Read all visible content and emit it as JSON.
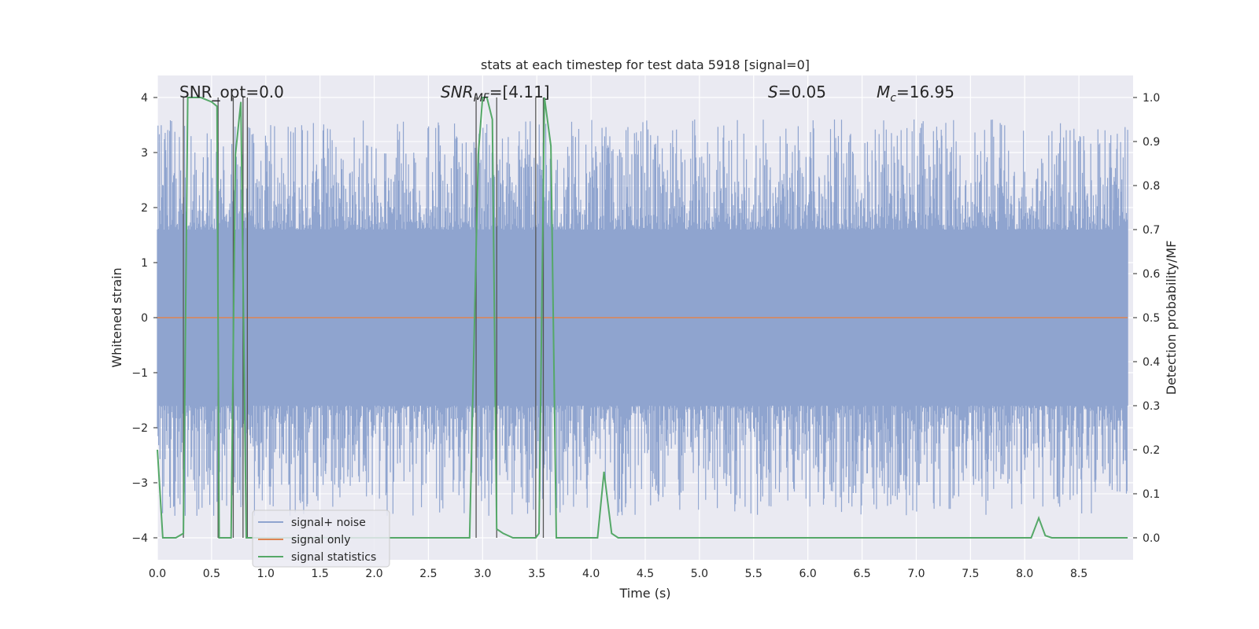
{
  "chart_data": {
    "type": "line",
    "title": "stats at each timestep for test data 5918 [signal=0]",
    "xlabel": "Time (s)",
    "ylabel": "Whitened strain",
    "ylabel_right": "Detection probability/MF",
    "xlim": [
      0.0,
      9.0
    ],
    "ylim": [
      -4.4,
      4.4
    ],
    "ylim_right": [
      -0.05,
      1.05
    ],
    "x_ticks": [
      "0.0",
      "0.5",
      "1.0",
      "1.5",
      "2.0",
      "2.5",
      "3.0",
      "3.5",
      "4.0",
      "4.5",
      "5.0",
      "5.5",
      "6.0",
      "6.5",
      "7.0",
      "7.5",
      "8.0",
      "8.5"
    ],
    "y_ticks": [
      "4",
      "3",
      "2",
      "1",
      "0",
      "−1",
      "−2",
      "−3",
      "−4"
    ],
    "y_ticks_right": [
      "1.0",
      "0.9",
      "0.8",
      "0.7",
      "0.6",
      "0.5",
      "0.4",
      "0.3",
      "0.2",
      "0.1",
      "0.0"
    ],
    "annotations": {
      "snr_opt": "SNR_opt=0.0",
      "snr_mf_base": "SNR",
      "snr_mf_sub": "MF",
      "snr_mf_value": "=[4.11]",
      "s_symbol": "S",
      "s_value": "=0.05",
      "mc_base": "M",
      "mc_sub": "c",
      "mc_value": "=16.95"
    },
    "legend": {
      "placement": "lower-left",
      "entries": [
        {
          "label": "signal+ noise",
          "color": "#8fa4cf"
        },
        {
          "label": "signal only",
          "color": "#dd8452"
        },
        {
          "label": "signal statistics",
          "color": "#55a868"
        }
      ]
    },
    "series": [
      {
        "name": "signal+ noise",
        "color": "#8fa4cf",
        "description": "whitened noisy strain, approx. zero-mean, amplitude mostly within ±2.5, peaks to about ±3.6",
        "envelope": {
          "typical_max": 1.6,
          "peak_max": 3.6,
          "typical_min": -1.6,
          "peak_min": -3.6
        }
      },
      {
        "name": "signal only",
        "color": "#dd8452",
        "values_constant": 0.0
      },
      {
        "name": "signal statistics",
        "color": "#55a868",
        "axis": "right",
        "x": [
          0.0,
          0.05,
          0.17,
          0.24,
          0.28,
          0.32,
          0.4,
          0.5,
          0.55,
          0.57,
          0.6,
          0.63,
          0.68,
          0.72,
          0.77,
          0.82,
          0.87,
          0.92,
          0.97,
          1.02,
          1.5,
          2.0,
          2.5,
          2.88,
          2.96,
          3.0,
          3.04,
          3.09,
          3.13,
          3.19,
          3.28,
          3.49,
          3.52,
          3.57,
          3.63,
          3.68,
          4.06,
          4.12,
          4.19,
          4.25,
          5.0,
          6.0,
          7.0,
          8.0,
          8.06,
          8.13,
          8.19,
          8.25,
          8.5,
          8.95
        ],
        "values": [
          0.2,
          0.0,
          0.0,
          0.01,
          1.0,
          1.0,
          1.0,
          0.99,
          0.98,
          0.0,
          0.0,
          0.0,
          0.0,
          0.87,
          0.99,
          0.0,
          0.0,
          0.0,
          0.0,
          0.0,
          0.0,
          0.0,
          0.0,
          0.0,
          0.87,
          1.0,
          1.0,
          0.95,
          0.02,
          0.01,
          0.0,
          0.0,
          0.01,
          1.0,
          0.89,
          0.0,
          0.0,
          0.15,
          0.01,
          0.0,
          0.0,
          0.0,
          0.0,
          0.0,
          0.0,
          0.045,
          0.005,
          0.0,
          0.0,
          0.0
        ]
      }
    ],
    "vertical_markers_x": [
      0.24,
      0.56,
      0.7,
      0.79,
      0.83,
      2.94,
      3.13,
      3.49,
      3.56
    ]
  }
}
